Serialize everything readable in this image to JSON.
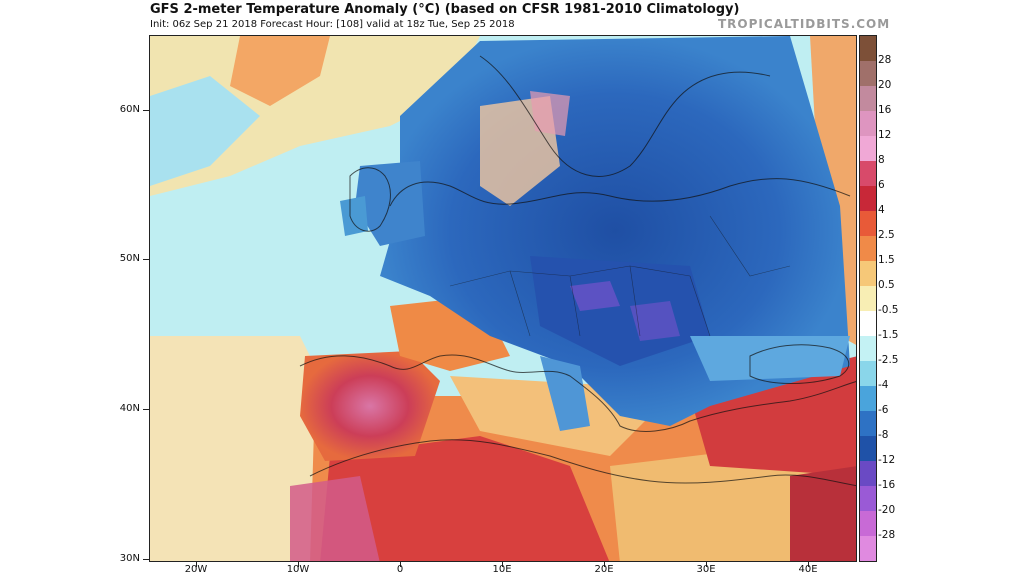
{
  "header": {
    "title": "GFS 2-meter Temperature Anomaly (°C) (based on CFSR 1981-2010 Climatology)",
    "subtitle": "Init: 06z Sep 21 2018    Forecast Hour: [108]    valid at 18z Tue, Sep 25 2018",
    "brand": "TROPICALTIDBITS.COM"
  },
  "map": {
    "region": "Europe, North Africa and the Middle East",
    "lat_labels": [
      "60N",
      "50N",
      "40N",
      "30N"
    ],
    "lon_labels": [
      "20W",
      "10W",
      "0",
      "10E",
      "20E",
      "30E",
      "40E"
    ],
    "anomaly_pattern": {
      "cold": [
        "Central Europe",
        "Eastern Europe",
        "Scandinavia",
        "British Isles",
        "Balkans",
        "Italy",
        "Black Sea"
      ],
      "warm": [
        "Iberian Peninsula",
        "North Africa",
        "Turkey",
        "Middle East",
        "Western Russia"
      ]
    }
  },
  "colorbar": {
    "labels": [
      "28",
      "20",
      "16",
      "12",
      "8",
      "6",
      "4",
      "2.5",
      "1.5",
      "0.5",
      "-0.5",
      "-1.5",
      "-2.5",
      "-4",
      "-6",
      "-8",
      "-12",
      "-16",
      "-20",
      "-28"
    ],
    "colors": [
      "#7d5038",
      "#a0706a",
      "#c28a9e",
      "#de95c0",
      "#f0a8d6",
      "#d84a6a",
      "#c82838",
      "#e85a38",
      "#f08a48",
      "#f6c878",
      "#f8eeb4",
      "#ffffff",
      "#c4f2f4",
      "#8ad6ea",
      "#4aa4dc",
      "#2e72c4",
      "#1f52a8",
      "#6a4ac4",
      "#9a5ad6",
      "#c86ad6",
      "#e08ae0"
    ]
  }
}
